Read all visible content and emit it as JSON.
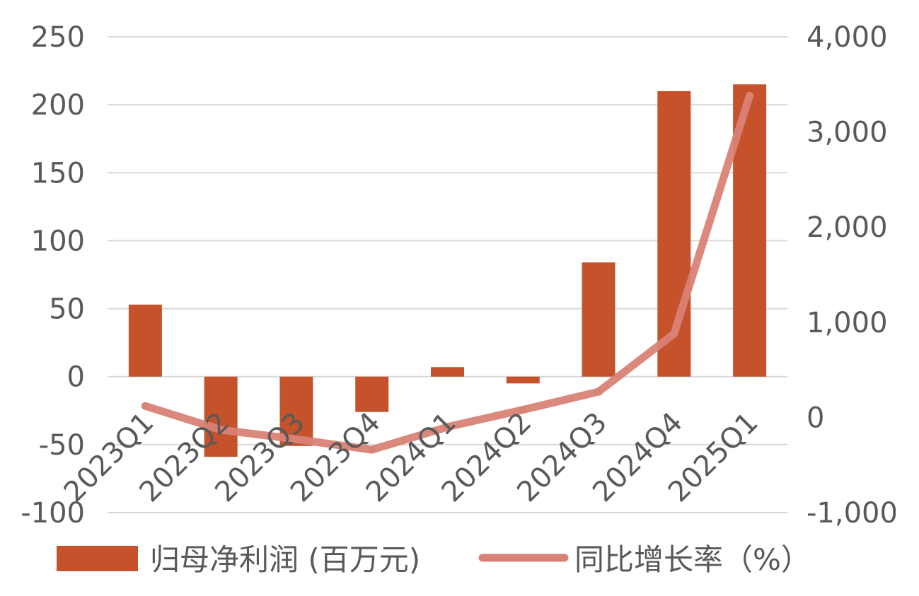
{
  "chart_data": {
    "type": "bar",
    "categories": [
      "2023Q1",
      "2023Q2",
      "2023Q3",
      "2023Q4",
      "2024Q1",
      "2024Q2",
      "2024Q3",
      "2024Q4",
      "2025Q1"
    ],
    "series": [
      {
        "name": "归母净利润 (百万元)",
        "type": "bar",
        "axis": "left",
        "color": "#c5522b",
        "values": [
          53,
          -59,
          -51,
          -26,
          7,
          -5,
          84,
          210,
          215
        ]
      },
      {
        "name": "同比增长率（%）",
        "type": "line",
        "axis": "right",
        "color": "#d98276",
        "values": [
          120,
          -130,
          -230,
          -340,
          -100,
          80,
          270,
          880,
          3380
        ]
      }
    ],
    "y_left": {
      "ylim": [
        -100,
        250
      ],
      "ticks": [
        "-100",
        "-50",
        "0",
        "50",
        "100",
        "150",
        "200",
        "250"
      ],
      "tick_values": [
        -100,
        -50,
        0,
        50,
        100,
        150,
        200,
        250
      ]
    },
    "y_right": {
      "ylim": [
        -1000,
        4000
      ],
      "ticks": [
        "-1,000",
        "0",
        "1,000",
        "2,000",
        "3,000",
        "4,000"
      ],
      "tick_values": [
        -1000,
        0,
        1000,
        2000,
        3000,
        4000
      ]
    },
    "grid": true,
    "legend": "bottom",
    "title": "",
    "xlabel": "",
    "ylabel": ""
  }
}
